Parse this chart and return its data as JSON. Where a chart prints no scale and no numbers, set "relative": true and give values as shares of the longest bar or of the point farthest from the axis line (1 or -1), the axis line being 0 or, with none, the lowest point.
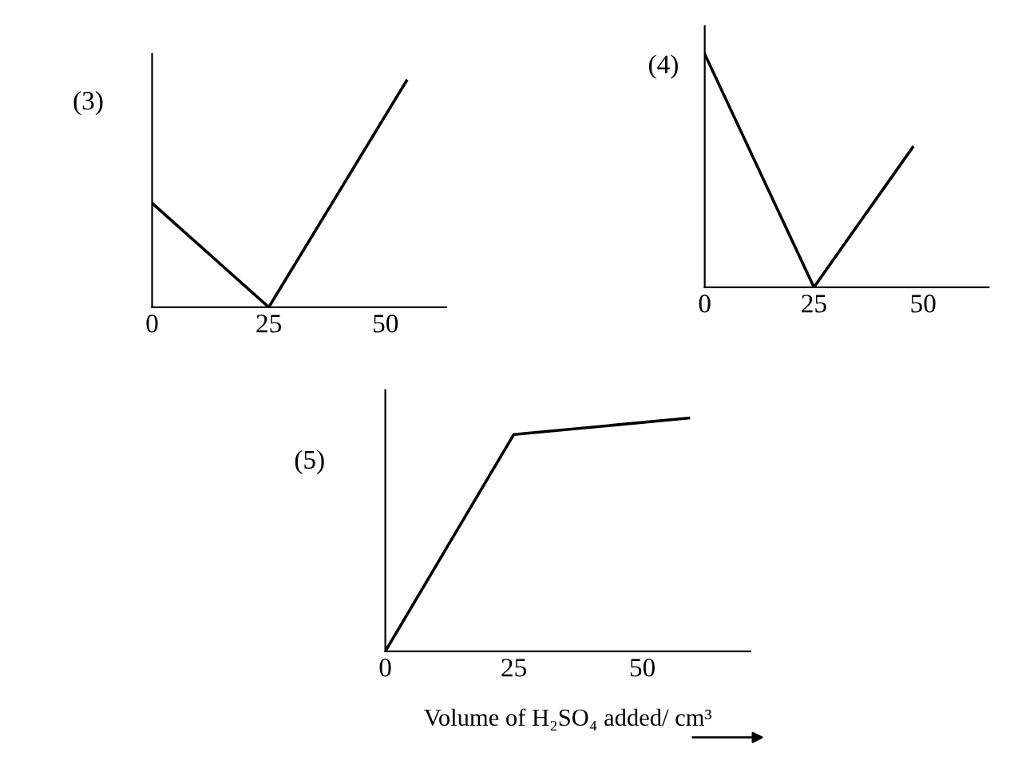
{
  "chart_data": [
    {
      "type": "line",
      "title": "(3)",
      "relative": true,
      "xlim": [
        0,
        63
      ],
      "xticks": [
        0,
        25,
        50
      ],
      "series": [
        {
          "color": "#000000",
          "x": [
            0,
            25,
            54.5
          ],
          "values": [
            0.46,
            0,
            1
          ]
        }
      ]
    },
    {
      "type": "line",
      "title": "(4)",
      "relative": true,
      "xlim": [
        0,
        65
      ],
      "xticks": [
        0,
        25,
        50
      ],
      "series": [
        {
          "color": "#000000",
          "x": [
            0,
            25,
            47.6
          ],
          "values": [
            1,
            0,
            0.6
          ]
        }
      ]
    },
    {
      "type": "line",
      "title": "(5)",
      "relative": true,
      "xlim": [
        0,
        71
      ],
      "xticks": [
        0,
        25,
        50
      ],
      "xlabel": "Volume of H₂SO₄ added/ cm³",
      "series": [
        {
          "color": "#000000",
          "x": [
            0,
            25,
            59
          ],
          "values": [
            0,
            0.93,
            1
          ]
        }
      ]
    }
  ]
}
